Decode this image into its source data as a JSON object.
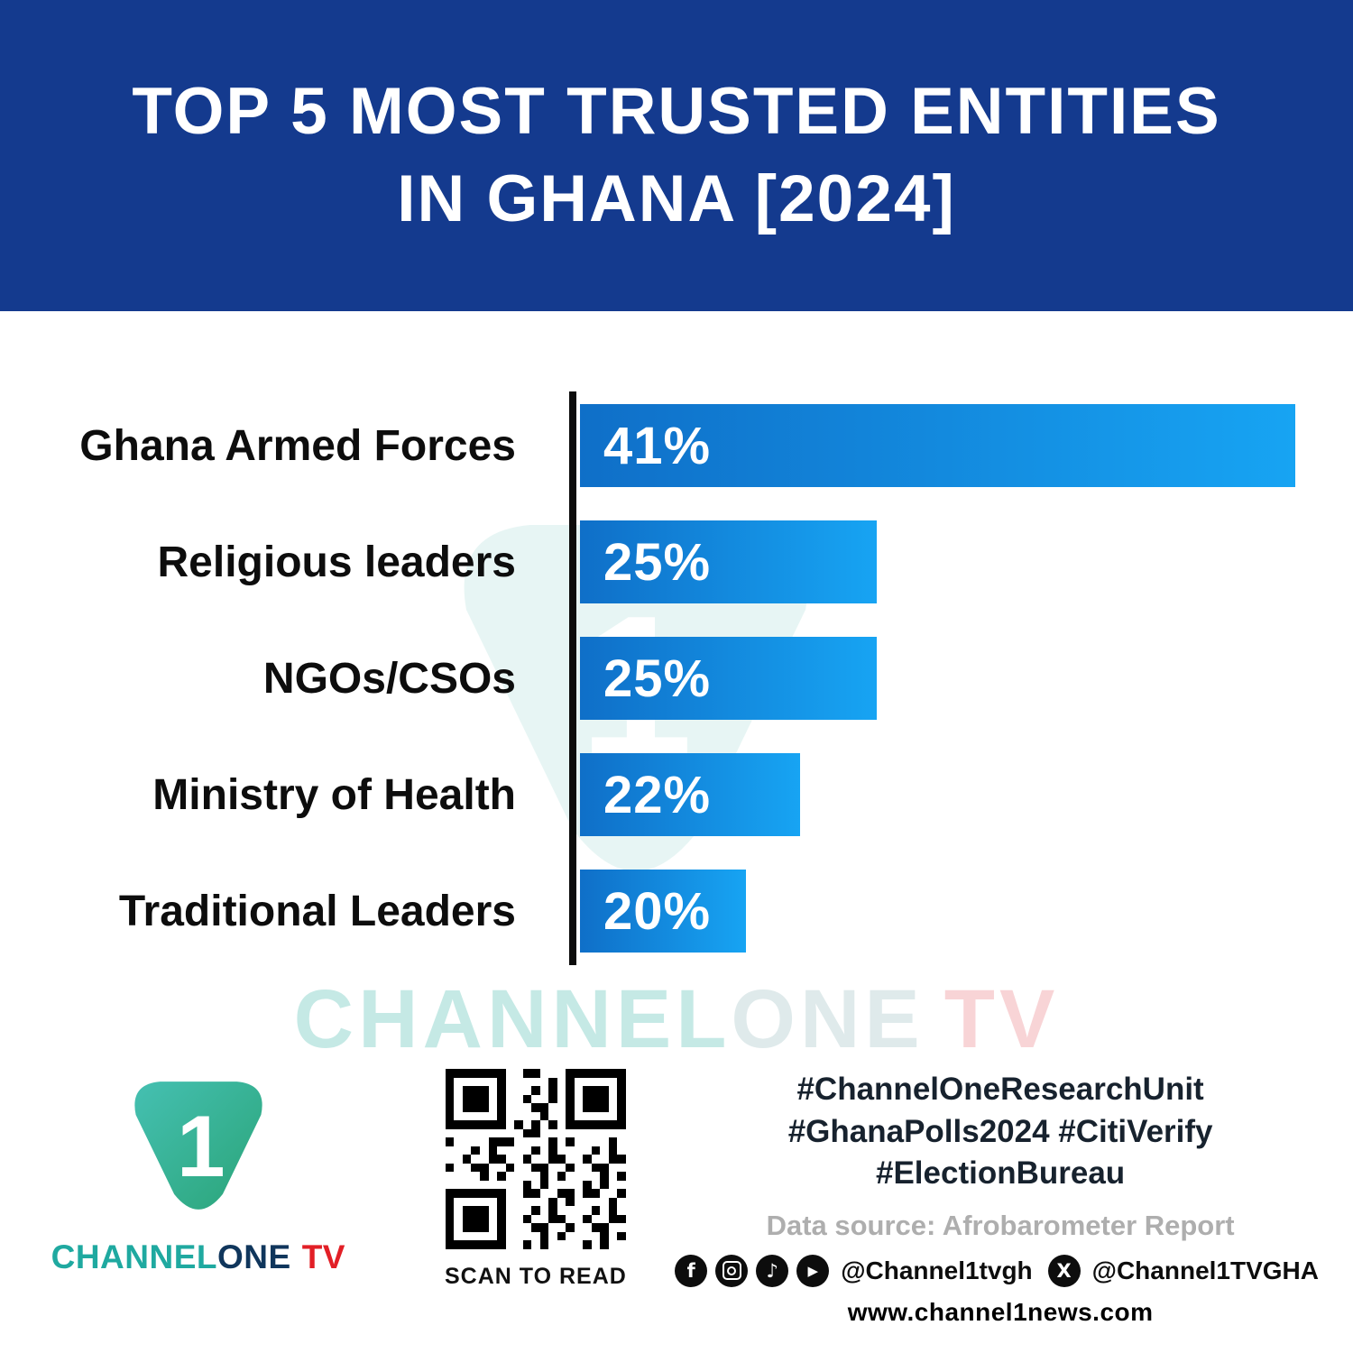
{
  "colors": {
    "header_bg": "#143a8e",
    "bar_gradient_start": "#0f6fc8",
    "bar_gradient_end": "#17a4f3",
    "axis_color": "#0c0c0c",
    "brand_teal": "#1fa9a0",
    "brand_navy": "#10365c",
    "brand_red": "#e21f26"
  },
  "header": {
    "title_line1": "TOP 5 MOST TRUSTED ENTITIES",
    "title_line2": "IN GHANA [2024]"
  },
  "chart_data": {
    "type": "bar",
    "orientation": "horizontal",
    "title": "Top 5 Most Trusted Entities in Ghana [2024]",
    "categories": [
      "Ghana Armed Forces",
      "Religious leaders",
      "NGOs/CSOs",
      "Ministry of Health",
      "Traditional Leaders"
    ],
    "values": [
      41,
      25,
      25,
      22,
      20
    ],
    "value_labels": [
      "41%",
      "25%",
      "25%",
      "22%",
      "20%"
    ],
    "unit": "%",
    "bar_widths_pct": [
      100,
      41.5,
      41.5,
      30.8,
      23.2
    ],
    "legend": false,
    "grid": false,
    "value_label_position": "inside-left"
  },
  "watermark": {
    "channel": "CHANNEL",
    "one": "ONE",
    "tv": "TV"
  },
  "footer": {
    "brand": {
      "digit": "1",
      "channel": "CHANNEL",
      "one": "ONE",
      "tv": "TV"
    },
    "qr_caption": "SCAN TO READ",
    "hashtags": [
      "#ChannelOneResearchUnit",
      "#GhanaPolls2024 #CitiVerify",
      "#ElectionBureau"
    ],
    "data_source": "Data source: Afrobarometer Report",
    "social": {
      "handle_primary": "@Channel1tvgh",
      "handle_x": "@Channel1TVGHA"
    },
    "website": "www.channel1news.com"
  }
}
